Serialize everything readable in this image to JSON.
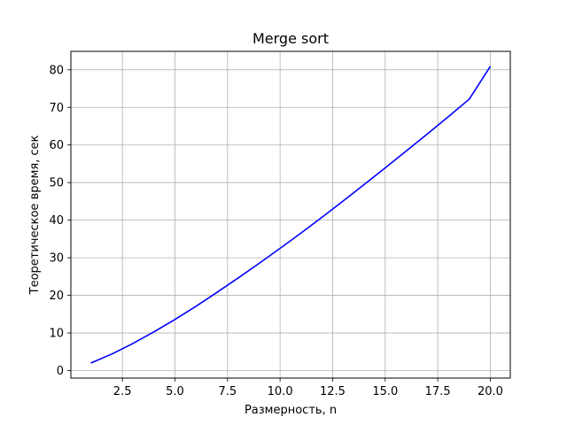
{
  "chart_data": {
    "type": "line",
    "title": "Merge sort",
    "xlabel": "Размерность, n",
    "ylabel": "Теоретическое время, сек",
    "xlim": [
      0.05,
      20.95
    ],
    "ylim": [
      -2.0,
      84.9
    ],
    "xticks": [
      2.5,
      5.0,
      7.5,
      10.0,
      12.5,
      15.0,
      17.5,
      20.0
    ],
    "xtick_labels": [
      "2.5",
      "5.0",
      "7.5",
      "10.0",
      "12.5",
      "15.0",
      "17.5",
      "20.0"
    ],
    "yticks": [
      0,
      10,
      20,
      30,
      40,
      50,
      60,
      70,
      80
    ],
    "ytick_labels": [
      "0",
      "10",
      "20",
      "30",
      "40",
      "50",
      "60",
      "70",
      "80"
    ],
    "grid": true,
    "series": [
      {
        "color": "#0000ff",
        "x": [
          1,
          2,
          3,
          4,
          5,
          6,
          7,
          8,
          9,
          10,
          11,
          12,
          13,
          14,
          15,
          16,
          17,
          18,
          19,
          20
        ],
        "y": [
          2.0,
          4.4,
          7.2,
          10.3,
          13.6,
          17.1,
          20.8,
          24.6,
          28.5,
          32.5,
          36.6,
          40.8,
          45.1,
          49.5,
          53.9,
          58.4,
          62.9,
          67.5,
          72.2,
          80.9
        ]
      }
    ]
  }
}
